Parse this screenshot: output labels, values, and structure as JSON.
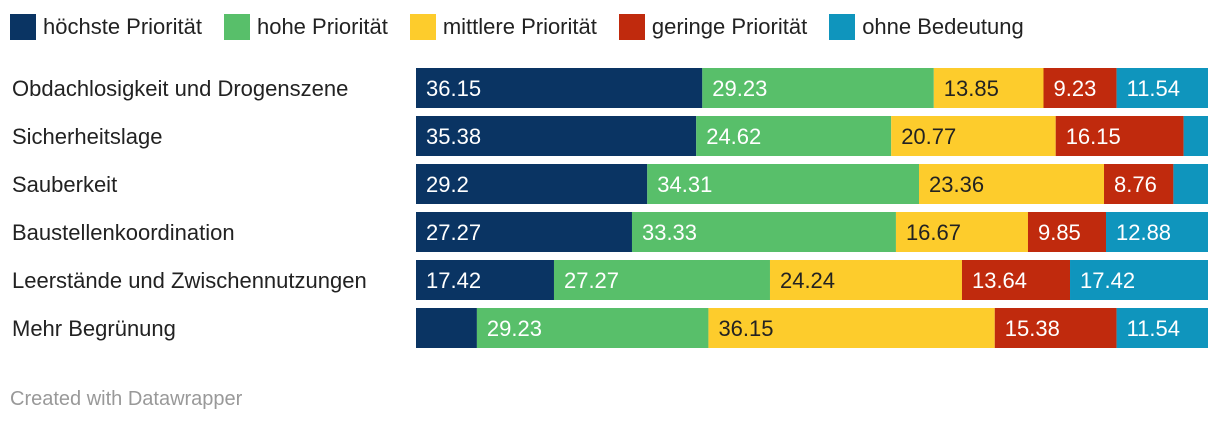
{
  "chart_data": {
    "type": "bar",
    "orientation": "horizontal-stacked",
    "legend_position": "top-left",
    "series": [
      {
        "name": "höchste Priorität",
        "color": "#0a3463",
        "label_color": "#ffffff"
      },
      {
        "name": "hohe Priorität",
        "color": "#58bf6a",
        "label_color": "#ffffff"
      },
      {
        "name": "mittlere Priorität",
        "color": "#fdcc2c",
        "label_color": "#222222"
      },
      {
        "name": "geringe Priorität",
        "color": "#c02a0d",
        "label_color": "#ffffff"
      },
      {
        "name": "ohne Bedeutung",
        "color": "#0f95bd",
        "label_color": "#ffffff"
      }
    ],
    "categories": [
      {
        "label": "Obdachlosigkeit und Drogenszene",
        "values": [
          36.15,
          29.23,
          13.85,
          9.23,
          11.54
        ],
        "labels": [
          "36.15",
          "29.23",
          "13.85",
          "9.23",
          "11.54"
        ]
      },
      {
        "label": "Sicherheitslage",
        "values": [
          35.38,
          24.62,
          20.77,
          16.15,
          3.08
        ],
        "labels": [
          "35.38",
          "24.62",
          "20.77",
          "16.15",
          ""
        ]
      },
      {
        "label": "Sauberkeit",
        "values": [
          29.2,
          34.31,
          23.36,
          8.76,
          4.37
        ],
        "labels": [
          "29.2",
          "34.31",
          "23.36",
          "8.76",
          ""
        ]
      },
      {
        "label": "Baustellenkoordination",
        "values": [
          27.27,
          33.33,
          16.67,
          9.85,
          12.88
        ],
        "labels": [
          "27.27",
          "33.33",
          "16.67",
          "9.85",
          "12.88"
        ]
      },
      {
        "label": "Leerstände und Zwischennutzungen",
        "values": [
          17.42,
          27.27,
          24.24,
          13.64,
          17.42
        ],
        "labels": [
          "17.42",
          "27.27",
          "24.24",
          "13.64",
          "17.42"
        ]
      },
      {
        "label": "Mehr Begrünung",
        "values": [
          7.69,
          29.23,
          36.15,
          15.38,
          11.54
        ],
        "labels": [
          "",
          "29.23",
          "36.15",
          "15.38",
          "11.54"
        ]
      }
    ],
    "xlim": [
      0,
      100
    ]
  },
  "footer": {
    "credit": "Created with Datawrapper"
  }
}
